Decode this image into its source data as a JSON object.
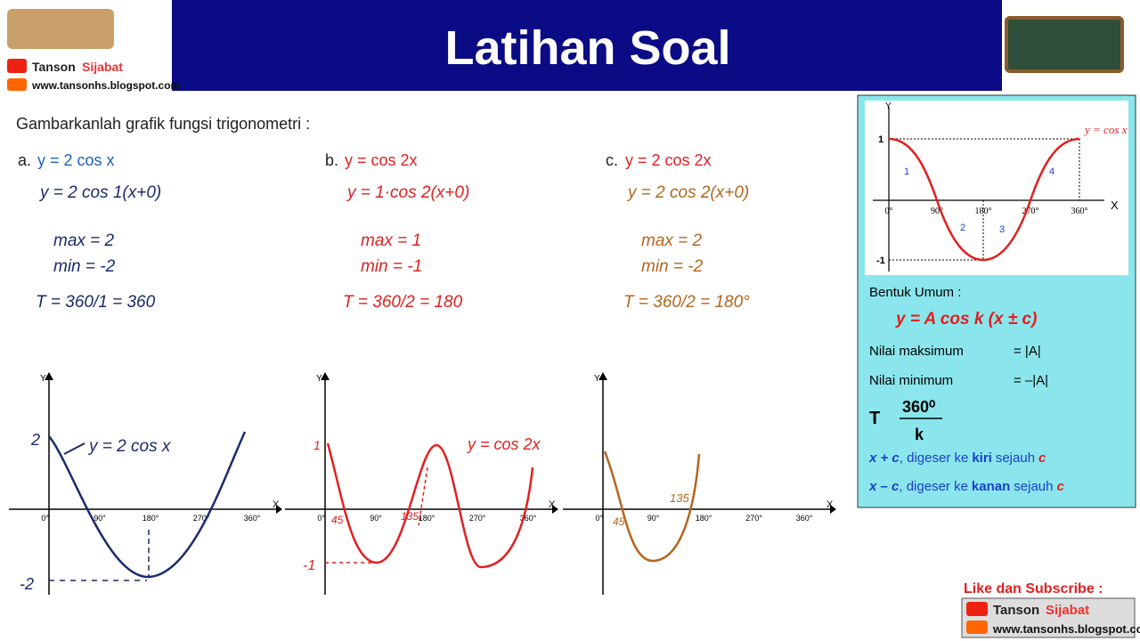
{
  "header": {
    "title": "Latihan Soal",
    "channel": {
      "name_first": "Tanson",
      "name_last": "Sijabat",
      "url": "www.tansonhs.blogspot.com"
    }
  },
  "question": "Gambarkanlah grafik fungsi trigonometri :",
  "problems": [
    {
      "label": "a.",
      "equation": "y = 2 cos x",
      "work": [
        "y = 2 cos 1(x+0)",
        "max = 2",
        "min = -2",
        "T = 360/1 = 360"
      ],
      "graph": {
        "x_labels": [
          "0°",
          "90°",
          "180°",
          "270°",
          "360°"
        ],
        "x_axis": "X",
        "y_axis": "Y",
        "annotations": [
          "2",
          "-2",
          "y = 2 cos x"
        ]
      }
    },
    {
      "label": "b.",
      "equation": "y = cos 2x",
      "work": [
        "y = 1·cos 2(x+0)",
        "max = 1",
        "min = -1",
        "T = 360/2 = 180"
      ],
      "graph": {
        "x_labels": [
          "0°",
          "90°",
          "180°",
          "270°",
          "360°"
        ],
        "x_axis": "X",
        "y_axis": "Y",
        "annotations": [
          "1",
          "-1",
          "45",
          "135",
          "y = cos 2x"
        ]
      }
    },
    {
      "label": "c.",
      "equation": "y = 2 cos 2x",
      "work": [
        "y = 2 cos 2(x+0)",
        "max = 2",
        "min = -2",
        "T = 360/2 = 180°"
      ],
      "graph": {
        "x_labels": [
          "0°",
          "90°",
          "180°",
          "270°",
          "360°"
        ],
        "x_axis": "X",
        "y_axis": "Y",
        "annotations": [
          "45",
          "135"
        ]
      }
    }
  ],
  "reference": {
    "curve_label": "y = cos x",
    "y_labels": [
      "1",
      "-1"
    ],
    "x_labels": [
      "0°",
      "90°",
      "180°",
      "270°",
      "360°"
    ],
    "x_axis": "X",
    "y_axis": "Y",
    "regions": [
      "1",
      "2",
      "3",
      "4"
    ],
    "general_form": {
      "heading": "Bentuk Umum :",
      "formula": "y = A cos k (x ± c)"
    },
    "properties": [
      {
        "name": "Nilai maksimum",
        "value": "= |A|"
      },
      {
        "name": "Nilai minimum",
        "value": "= –|A|"
      }
    ],
    "period": {
      "lhs": "T",
      "numerator": "360⁰",
      "denominator": "k"
    },
    "shifts": [
      {
        "expr": "x + c",
        "text1": ", digeser ke",
        "direction": "kiri",
        "text2": "sejauh",
        "amount": "c"
      },
      {
        "expr": "x – c",
        "text1": ", digeser ke",
        "direction": "kanan",
        "text2": "sejauh",
        "amount": "c"
      }
    ]
  },
  "footer": {
    "cta": "Like dan Subscribe :",
    "name_first": "Tanson",
    "name_last": "Sijabat",
    "url": "www.tansonhs.blogspot.com"
  }
}
